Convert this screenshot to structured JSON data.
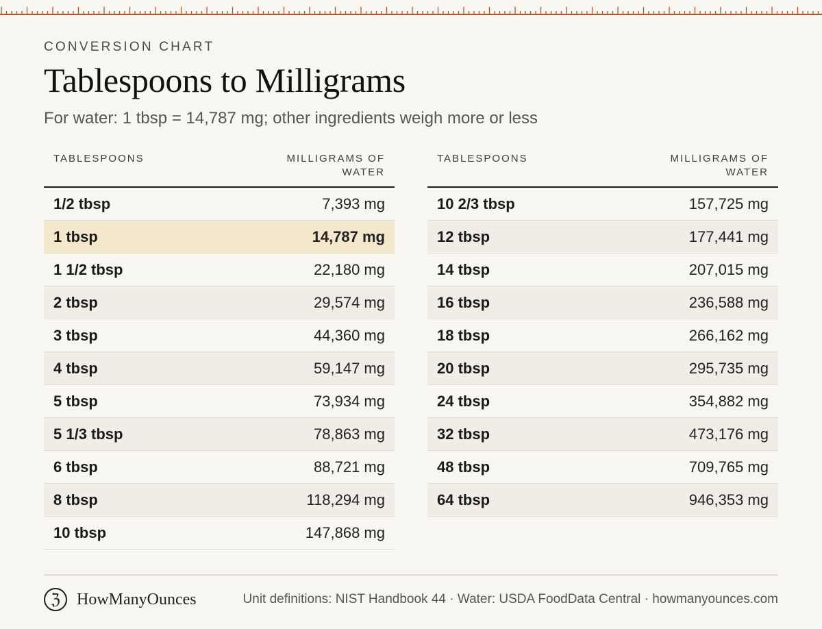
{
  "header": {
    "eyebrow": "CONVERSION CHART",
    "title": "Tablespoons to Milligrams",
    "subtitle": "For water: 1 tbsp = 14,787 mg; other ingredients weigh more or less"
  },
  "colors": {
    "accent": "#b0562c",
    "highlight": "#f4e8cc",
    "background": "#f8f6f1"
  },
  "table_left": {
    "col1": "TABLESPOONS",
    "col2_line1": "MILLIGRAMS OF",
    "col2_line2": "WATER",
    "rows": [
      {
        "tbsp": "1/2 tbsp",
        "mg": "7,393 mg"
      },
      {
        "tbsp": "1 tbsp",
        "mg": "14,787 mg",
        "highlight": true
      },
      {
        "tbsp": "1 1/2 tbsp",
        "mg": "22,180 mg"
      },
      {
        "tbsp": "2 tbsp",
        "mg": "29,574 mg"
      },
      {
        "tbsp": "3 tbsp",
        "mg": "44,360 mg"
      },
      {
        "tbsp": "4 tbsp",
        "mg": "59,147 mg"
      },
      {
        "tbsp": "5 tbsp",
        "mg": "73,934 mg"
      },
      {
        "tbsp": "5 1/3 tbsp",
        "mg": "78,863 mg"
      },
      {
        "tbsp": "6 tbsp",
        "mg": "88,721 mg"
      },
      {
        "tbsp": "8 tbsp",
        "mg": "118,294 mg"
      },
      {
        "tbsp": "10 tbsp",
        "mg": "147,868 mg"
      }
    ]
  },
  "table_right": {
    "col1": "TABLESPOONS",
    "col2_line1": "MILLIGRAMS OF",
    "col2_line2": "WATER",
    "rows": [
      {
        "tbsp": "10 2/3 tbsp",
        "mg": "157,725 mg"
      },
      {
        "tbsp": "12 tbsp",
        "mg": "177,441 mg"
      },
      {
        "tbsp": "14 tbsp",
        "mg": "207,015 mg"
      },
      {
        "tbsp": "16 tbsp",
        "mg": "236,588 mg"
      },
      {
        "tbsp": "18 tbsp",
        "mg": "266,162 mg"
      },
      {
        "tbsp": "20 tbsp",
        "mg": "295,735 mg"
      },
      {
        "tbsp": "24 tbsp",
        "mg": "354,882 mg"
      },
      {
        "tbsp": "32 tbsp",
        "mg": "473,176 mg"
      },
      {
        "tbsp": "48 tbsp",
        "mg": "709,765 mg"
      },
      {
        "tbsp": "64 tbsp",
        "mg": "946,353 mg"
      }
    ]
  },
  "footer": {
    "logo_glyph": "ℨ",
    "logo_icon": "brand-logo-icon",
    "brand": "HowManyOunces",
    "sources": "Unit definitions: NIST Handbook 44 · Water: USDA FoodData Central · howmanyounces.com"
  }
}
